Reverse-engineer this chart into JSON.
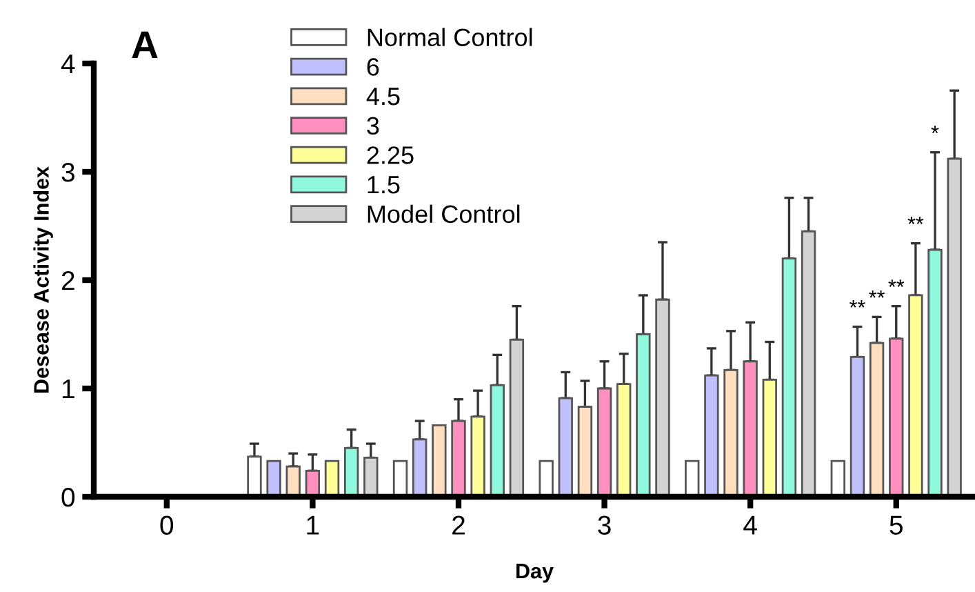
{
  "chart_data": {
    "type": "bar",
    "ylabel": "Desease Activity Index",
    "xlabel": "Day",
    "categories": [
      "0",
      "1",
      "2",
      "3",
      "4",
      "5"
    ],
    "ylim": [
      0,
      4
    ],
    "yticks": [
      0,
      1,
      2,
      3,
      4
    ],
    "grid": false,
    "legend": "top",
    "series": [
      {
        "name": "Normal Control",
        "color": "#ffffff",
        "values": [
          null,
          0.37,
          0.33,
          0.33,
          0.33,
          0.33
        ],
        "errors": [
          null,
          [
            0.37,
            0.49
          ],
          null,
          null,
          null,
          null
        ]
      },
      {
        "name": "6",
        "color": "#c0c0ff",
        "values": [
          null,
          0.33,
          0.53,
          0.91,
          1.12,
          1.29
        ],
        "errors": [
          null,
          null,
          [
            0.53,
            0.7
          ],
          [
            0.91,
            1.15
          ],
          [
            1.12,
            1.37
          ],
          [
            1.29,
            1.57
          ]
        ]
      },
      {
        "name": "4.5",
        "color": "#ffdfbf",
        "values": [
          null,
          0.28,
          0.66,
          0.83,
          1.17,
          1.42
        ],
        "errors": [
          null,
          [
            0.28,
            0.4
          ],
          null,
          [
            0.83,
            1.07
          ],
          [
            1.17,
            1.53
          ],
          [
            1.42,
            1.66
          ]
        ]
      },
      {
        "name": "3",
        "color": "#ff90c0",
        "values": [
          null,
          0.24,
          0.7,
          1.0,
          1.25,
          1.46
        ],
        "errors": [
          null,
          [
            0.24,
            0.39
          ],
          [
            0.7,
            0.9
          ],
          [
            1.0,
            1.25
          ],
          [
            1.25,
            1.61
          ],
          [
            1.46,
            1.76
          ]
        ]
      },
      {
        "name": "2.25",
        "color": "#ffff99",
        "values": [
          null,
          0.33,
          0.74,
          1.04,
          1.08,
          1.86
        ],
        "errors": [
          null,
          null,
          [
            0.74,
            0.98
          ],
          [
            1.04,
            1.32
          ],
          [
            1.08,
            1.43
          ],
          [
            1.86,
            2.34
          ]
        ]
      },
      {
        "name": "1.5",
        "color": "#90f8dc",
        "values": [
          null,
          0.45,
          1.03,
          1.5,
          2.2,
          2.28
        ],
        "errors": [
          null,
          [
            0.45,
            0.62
          ],
          [
            1.03,
            1.31
          ],
          [
            1.5,
            1.86
          ],
          [
            2.2,
            2.76
          ],
          [
            2.28,
            3.18
          ]
        ]
      },
      {
        "name": "Model Control",
        "color": "#d3d3d3",
        "values": [
          null,
          0.36,
          1.45,
          1.82,
          2.45,
          3.12
        ],
        "errors": [
          null,
          [
            0.36,
            0.49
          ],
          [
            1.45,
            1.76
          ],
          [
            1.82,
            2.35
          ],
          [
            2.45,
            2.76
          ],
          [
            3.12,
            3.75
          ]
        ]
      }
    ],
    "annotations": [
      "A",
      "**",
      "**",
      "**",
      "**",
      "*"
    ]
  }
}
